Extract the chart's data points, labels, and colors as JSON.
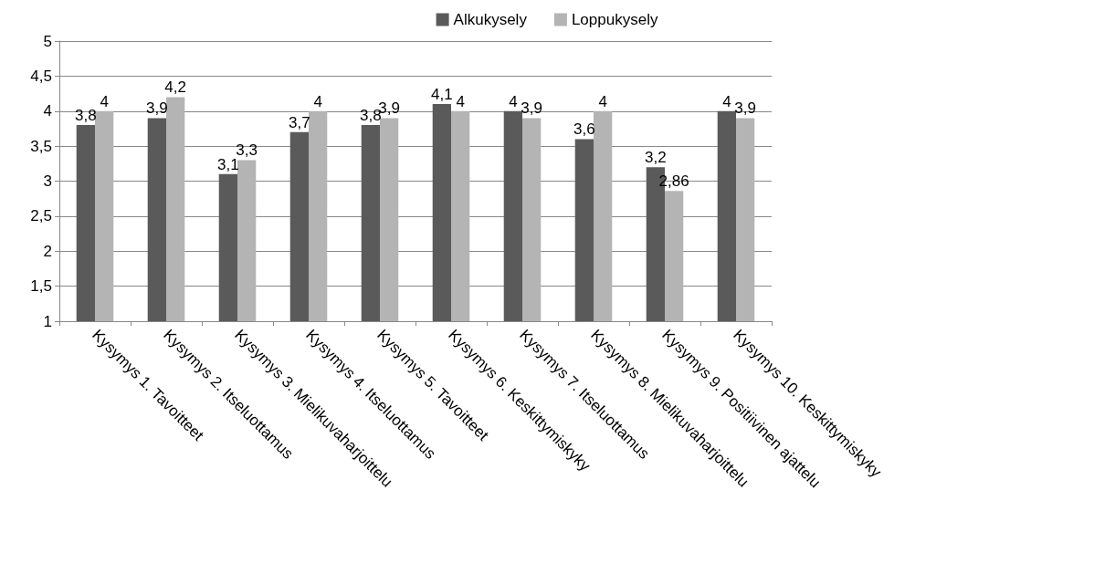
{
  "chart_data": {
    "type": "bar",
    "categories": [
      "Kysymys 1. Tavoitteet",
      "Kysymys 2. Itseluottamus",
      "Kysymys 3. Mielikuvaharjoittelu",
      "Kysymys 4. Itseluottamus",
      "Kysymys 5. Tavoitteet",
      "Kysymys 6. Keskittymiskyky",
      "Kysymys 7. Itseluottamus",
      "Kysymys 8. Mielikuvaharjoittelu",
      "Kysymys 9. Positiivinen ajattelu",
      "Kysymys 10. Keskittymiskyky"
    ],
    "series": [
      {
        "name": "Alkukysely",
        "color": "#5a5a5a",
        "values": [
          3.8,
          3.9,
          3.1,
          3.7,
          3.8,
          4.1,
          4,
          3.6,
          3.2,
          4
        ],
        "value_labels": [
          "3,8",
          "3,9",
          "3,1",
          "3,7",
          "3,8",
          "4,1",
          "4",
          "3,6",
          "3,2",
          "4"
        ]
      },
      {
        "name": "Loppukysely",
        "color": "#b4b4b4",
        "values": [
          4,
          4.2,
          3.3,
          4,
          3.9,
          4,
          3.9,
          4,
          2.86,
          3.9
        ],
        "value_labels": [
          "4",
          "4,2",
          "3,3",
          "4",
          "3,9",
          "4",
          "3,9",
          "4",
          "2,86",
          "3,9"
        ]
      }
    ],
    "ylim": [
      1,
      5
    ],
    "yticks": [
      1,
      {
        "value": 1.5,
        "label": "1,5"
      },
      2,
      {
        "value": 2.5,
        "label": "2,5"
      },
      3,
      {
        "value": 3.5,
        "label": "3,5"
      },
      4,
      {
        "value": 4.5,
        "label": "4,5"
      },
      5
    ],
    "grid": "y",
    "legend": "top"
  }
}
